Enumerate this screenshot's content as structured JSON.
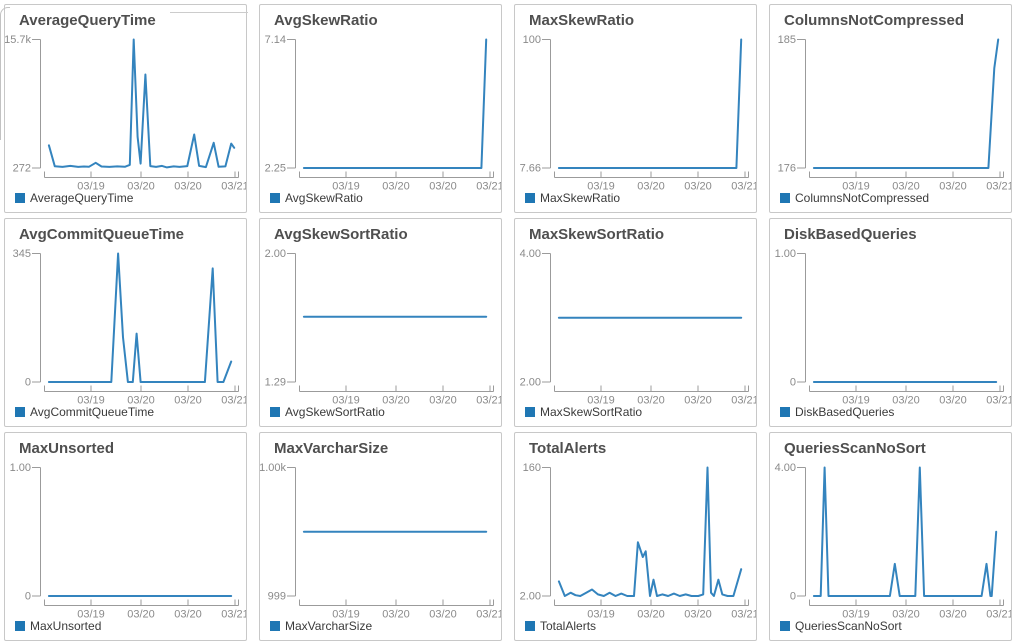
{
  "ui": {
    "colors": {
      "line": "#3484be",
      "legend_square": "#1f77b4",
      "axis": "#9b9b9b",
      "tick_label": "#8a8a8a",
      "title": "#4f4f4f",
      "legend_text": "#3a3a3a",
      "panel_border": "#c8c8c8",
      "background": "#ffffff"
    },
    "legend_square_icon": "blue-square"
  },
  "chart_data": [
    {
      "type": "line",
      "title": "AverageQueryTime",
      "legend": "AverageQueryTime",
      "y_max_label": "15.7k",
      "y_min_label": "272",
      "ylim": [
        272,
        15700
      ],
      "x_tick_labels": [
        "03/19",
        "03/20",
        "03/20",
        "03/21"
      ],
      "points": [
        [
          0.02,
          3000
        ],
        [
          0.05,
          480
        ],
        [
          0.09,
          400
        ],
        [
          0.13,
          520
        ],
        [
          0.17,
          400
        ],
        [
          0.2,
          450
        ],
        [
          0.225,
          420
        ],
        [
          0.26,
          900
        ],
        [
          0.29,
          450
        ],
        [
          0.33,
          400
        ],
        [
          0.37,
          460
        ],
        [
          0.41,
          420
        ],
        [
          0.435,
          650
        ],
        [
          0.455,
          15700
        ],
        [
          0.475,
          4000
        ],
        [
          0.49,
          800
        ],
        [
          0.515,
          11500
        ],
        [
          0.54,
          500
        ],
        [
          0.57,
          400
        ],
        [
          0.6,
          520
        ],
        [
          0.625,
          350
        ],
        [
          0.66,
          460
        ],
        [
          0.69,
          400
        ],
        [
          0.73,
          500
        ],
        [
          0.765,
          4300
        ],
        [
          0.79,
          520
        ],
        [
          0.825,
          380
        ],
        [
          0.865,
          3300
        ],
        [
          0.89,
          420
        ],
        [
          0.925,
          460
        ],
        [
          0.955,
          3200
        ],
        [
          0.97,
          2700
        ]
      ]
    },
    {
      "type": "line",
      "title": "AvgSkewRatio",
      "legend": "AvgSkewRatio",
      "y_max_label": "7.14",
      "y_min_label": "2.25",
      "ylim": [
        2.25,
        7.14
      ],
      "x_tick_labels": [
        "03/19",
        "03/20",
        "03/20",
        "03/21"
      ],
      "points": [
        [
          0.02,
          2.25
        ],
        [
          0.93,
          2.25
        ],
        [
          0.955,
          7.14
        ]
      ]
    },
    {
      "type": "line",
      "title": "MaxSkewRatio",
      "legend": "MaxSkewRatio",
      "y_max_label": "100",
      "y_min_label": "7.66",
      "ylim": [
        7.66,
        100
      ],
      "x_tick_labels": [
        "03/19",
        "03/20",
        "03/20",
        "03/21"
      ],
      "points": [
        [
          0.02,
          7.66
        ],
        [
          0.93,
          7.66
        ],
        [
          0.955,
          100
        ]
      ]
    },
    {
      "type": "line",
      "title": "ColumnsNotCompressed",
      "legend": "ColumnsNotCompressed",
      "y_max_label": "185",
      "y_min_label": "176",
      "ylim": [
        176,
        185
      ],
      "x_tick_labels": [
        "03/19",
        "03/20",
        "03/20",
        "03/21"
      ],
      "points": [
        [
          0.02,
          176
        ],
        [
          0.915,
          176
        ],
        [
          0.945,
          183
        ],
        [
          0.965,
          185
        ]
      ]
    },
    {
      "type": "line",
      "title": "AvgCommitQueueTime",
      "legend": "AvgCommitQueueTime",
      "y_max_label": "345",
      "y_min_label": "0",
      "ylim": [
        0,
        345
      ],
      "x_tick_labels": [
        "03/19",
        "03/20",
        "03/20",
        "03/21"
      ],
      "points": [
        [
          0.02,
          0
        ],
        [
          0.34,
          0
        ],
        [
          0.375,
          345
        ],
        [
          0.4,
          120
        ],
        [
          0.425,
          0
        ],
        [
          0.45,
          0
        ],
        [
          0.47,
          130
        ],
        [
          0.49,
          0
        ],
        [
          0.82,
          0
        ],
        [
          0.86,
          305
        ],
        [
          0.885,
          0
        ],
        [
          0.915,
          0
        ],
        [
          0.955,
          55
        ]
      ]
    },
    {
      "type": "line",
      "title": "AvgSkewSortRatio",
      "legend": "AvgSkewSortRatio",
      "y_max_label": "2.00",
      "y_min_label": "1.29",
      "ylim": [
        1.29,
        2.0
      ],
      "x_tick_labels": [
        "03/19",
        "03/20",
        "03/20",
        "03/21"
      ],
      "points": [
        [
          0.02,
          1.65
        ],
        [
          0.955,
          1.65
        ]
      ]
    },
    {
      "type": "line",
      "title": "MaxSkewSortRatio",
      "legend": "MaxSkewSortRatio",
      "y_max_label": "4.00",
      "y_min_label": "2.00",
      "ylim": [
        2.0,
        4.0
      ],
      "x_tick_labels": [
        "03/19",
        "03/20",
        "03/20",
        "03/21"
      ],
      "points": [
        [
          0.02,
          3.0
        ],
        [
          0.955,
          3.0
        ]
      ]
    },
    {
      "type": "line",
      "title": "DiskBasedQueries",
      "legend": "DiskBasedQueries",
      "y_max_label": "1.00",
      "y_min_label": "0",
      "ylim": [
        0,
        1.0
      ],
      "x_tick_labels": [
        "03/19",
        "03/20",
        "03/20",
        "03/21"
      ],
      "points": [
        [
          0.02,
          0
        ],
        [
          0.955,
          0
        ]
      ]
    },
    {
      "type": "line",
      "title": "MaxUnsorted",
      "legend": "MaxUnsorted",
      "y_max_label": "1.00",
      "y_min_label": "0",
      "ylim": [
        0,
        1.0
      ],
      "x_tick_labels": [
        "03/19",
        "03/20",
        "03/20",
        "03/21"
      ],
      "points": [
        [
          0.02,
          0
        ],
        [
          0.955,
          0
        ]
      ]
    },
    {
      "type": "line",
      "title": "MaxVarcharSize",
      "legend": "MaxVarcharSize",
      "y_max_label": "1.00k",
      "y_min_label": "999",
      "ylim": [
        999,
        1000
      ],
      "x_tick_labels": [
        "03/19",
        "03/20",
        "03/20",
        "03/21"
      ],
      "points": [
        [
          0.02,
          999.5
        ],
        [
          0.955,
          999.5
        ]
      ]
    },
    {
      "type": "line",
      "title": "TotalAlerts",
      "legend": "TotalAlerts",
      "y_max_label": "160",
      "y_min_label": "2.00",
      "ylim": [
        2.0,
        160
      ],
      "x_tick_labels": [
        "03/19",
        "03/20",
        "03/20",
        "03/21"
      ],
      "points": [
        [
          0.02,
          20
        ],
        [
          0.05,
          2
        ],
        [
          0.08,
          6
        ],
        [
          0.105,
          3
        ],
        [
          0.13,
          2
        ],
        [
          0.16,
          6
        ],
        [
          0.19,
          10
        ],
        [
          0.22,
          4
        ],
        [
          0.25,
          2
        ],
        [
          0.28,
          6
        ],
        [
          0.31,
          2
        ],
        [
          0.34,
          5
        ],
        [
          0.37,
          2
        ],
        [
          0.405,
          2
        ],
        [
          0.425,
          68
        ],
        [
          0.45,
          50
        ],
        [
          0.465,
          57
        ],
        [
          0.487,
          2
        ],
        [
          0.505,
          22
        ],
        [
          0.523,
          2
        ],
        [
          0.55,
          4
        ],
        [
          0.58,
          2
        ],
        [
          0.61,
          5
        ],
        [
          0.64,
          2
        ],
        [
          0.67,
          4
        ],
        [
          0.7,
          2
        ],
        [
          0.735,
          2
        ],
        [
          0.76,
          4
        ],
        [
          0.782,
          160
        ],
        [
          0.8,
          6
        ],
        [
          0.815,
          2
        ],
        [
          0.838,
          22
        ],
        [
          0.858,
          4
        ],
        [
          0.885,
          2
        ],
        [
          0.915,
          2
        ],
        [
          0.955,
          35
        ]
      ]
    },
    {
      "type": "line",
      "title": "QueriesScanNoSort",
      "legend": "QueriesScanNoSort",
      "y_max_label": "4.00",
      "y_min_label": "0",
      "ylim": [
        0,
        4.0
      ],
      "x_tick_labels": [
        "03/19",
        "03/20",
        "03/20",
        "03/21"
      ],
      "points": [
        [
          0.02,
          0
        ],
        [
          0.055,
          0
        ],
        [
          0.075,
          4
        ],
        [
          0.095,
          0
        ],
        [
          0.41,
          0
        ],
        [
          0.435,
          1
        ],
        [
          0.46,
          0
        ],
        [
          0.54,
          0
        ],
        [
          0.563,
          4
        ],
        [
          0.585,
          0
        ],
        [
          0.88,
          0
        ],
        [
          0.905,
          1
        ],
        [
          0.925,
          0
        ],
        [
          0.932,
          0
        ],
        [
          0.955,
          2
        ]
      ]
    }
  ]
}
